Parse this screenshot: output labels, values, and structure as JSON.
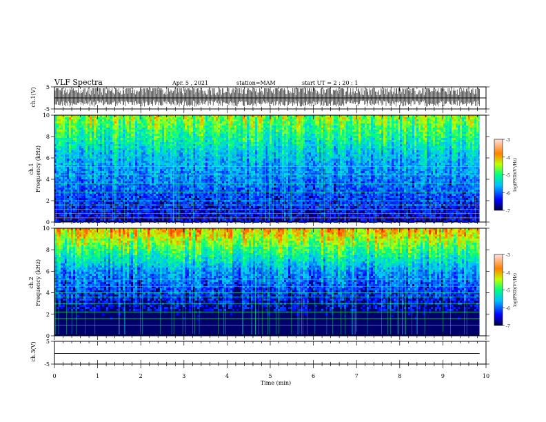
{
  "header": {
    "title": "VLF Spectra",
    "date": "Apr. 5 , 2021",
    "station": "station=MAM",
    "start": "start UT = 2 : 20 : 1"
  },
  "chart_data": [
    {
      "type": "line",
      "name": "waveform-ch1",
      "ylabel": "ch.1(V)",
      "ylim": [
        -5,
        5
      ],
      "yticks": [
        "5",
        "-5"
      ],
      "xlim": [
        0,
        10
      ],
      "note_level": "dense black bipolar spikes across full 0-9.85 min span"
    },
    {
      "type": "heatmap",
      "name": "spectrogram-ch1",
      "ylabel_line1": "ch.1",
      "ylabel_line2": "Frequency (kHz)",
      "ylim": [
        0,
        10
      ],
      "yticks": [
        "0",
        "2",
        "4",
        "6",
        "8",
        "10"
      ],
      "xlim": [
        0,
        10
      ],
      "colorbar": {
        "label": "log(PSD)(V²/Hz)",
        "range": [
          -7,
          -3
        ],
        "ticks": [
          "-3",
          "-4",
          "-5",
          "-6",
          "-7"
        ]
      },
      "harmonic_lines_khz": [
        0.4,
        0.8,
        1.2,
        1.6,
        2.0,
        2.8,
        3.6,
        4.4,
        5.2,
        6.0
      ]
    },
    {
      "type": "heatmap",
      "name": "spectrogram-ch2",
      "ylabel_line1": "ch.2",
      "ylabel_line2": "Frequency (kHz)",
      "ylim": [
        0,
        10
      ],
      "yticks": [
        "0",
        "2",
        "4",
        "6",
        "8",
        "10"
      ],
      "xlim": [
        0,
        10
      ],
      "colorbar": {
        "label": "log(PSD)(V²/Hz)",
        "range": [
          -7,
          -3
        ],
        "ticks": [
          "-3",
          "-4",
          "-5",
          "-6",
          "-7"
        ]
      },
      "harmonic_lines_khz": [
        1.0,
        1.6,
        2.2,
        3.0,
        3.6,
        4.0,
        4.6,
        5.2
      ]
    },
    {
      "type": "line",
      "name": "waveform-ch3",
      "ylabel": "ch.3(V)",
      "ylim": [
        -5,
        5
      ],
      "yticks": [
        "5",
        "-5"
      ],
      "xlim": [
        0,
        10
      ],
      "constant_value": 0,
      "xlabel": "Time (min)",
      "xticks": [
        "0",
        "1",
        "2",
        "3",
        "4",
        "5",
        "6",
        "7",
        "8",
        "9",
        "10"
      ]
    }
  ],
  "colors": {
    "low": "#000080",
    "mid": "#00ff80",
    "high": "#ff0000",
    "axis": "#000000"
  }
}
